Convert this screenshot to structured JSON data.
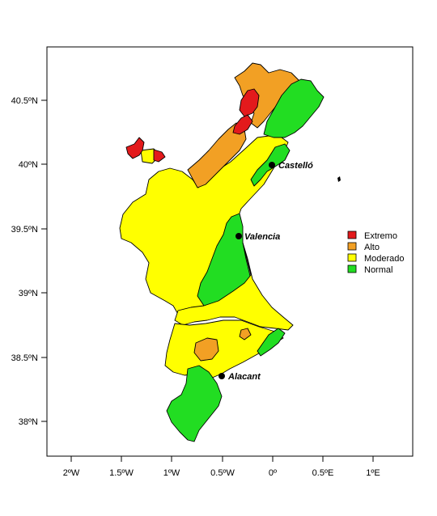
{
  "map": {
    "x_ticks": [
      "2ºW",
      "1.5ºW",
      "1ºW",
      "0.5ºW",
      "0º",
      "0.5ºE",
      "1ºE"
    ],
    "y_ticks": [
      "40.5ºN",
      "40ºN",
      "39.5ºN",
      "39ºN",
      "38.5ºN",
      "38ºN"
    ],
    "cities": [
      {
        "name": "Castelló"
      },
      {
        "name": "Valencia"
      },
      {
        "name": "Alacant"
      }
    ],
    "legend": [
      {
        "label": "Extremo",
        "color": "#e31a1c"
      },
      {
        "label": "Alto",
        "color": "#f2a024"
      },
      {
        "label": "Moderado",
        "color": "#ffff00"
      },
      {
        "label": "Normal",
        "color": "#22dd22"
      }
    ]
  }
}
